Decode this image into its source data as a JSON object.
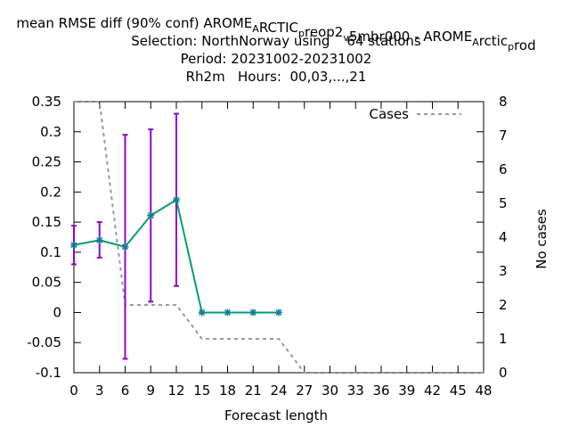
{
  "chart_data": {
    "type": "line",
    "title_lines": [
      "mean RMSE diff (90% conf) AROME_ARCTIC_preop2_v5mbr000 - AROME_Arctic_prod",
      "Selection: NorthNorway using    64 stations",
      "Period: 20231002-20231002",
      "Rh2m   Hours:  00,03,...,21"
    ],
    "title_segments": [
      {
        "t": "mean RMSE diff (90% conf) AROME",
        "sub": false
      },
      {
        "t": "A",
        "sub": true
      },
      {
        "t": "RCTIC",
        "sub": false
      },
      {
        "t": "p",
        "sub": true
      },
      {
        "t": "reop2",
        "sub": false
      },
      {
        "t": "v",
        "sub": true
      },
      {
        "t": "5mbr000 - AROME",
        "sub": false
      },
      {
        "t": "A",
        "sub": true
      },
      {
        "t": "rctic",
        "sub": false
      },
      {
        "t": "p",
        "sub": true
      },
      {
        "t": "rod",
        "sub": false
      }
    ],
    "xlabel": "Forecast length",
    "ylabel_right": "No cases",
    "x_ticks": [
      0,
      3,
      6,
      9,
      12,
      15,
      18,
      21,
      24,
      27,
      30,
      33,
      36,
      39,
      42,
      45,
      48
    ],
    "xlim": [
      0,
      48
    ],
    "ylim": [
      -0.1,
      0.35
    ],
    "y_ticks": [
      -0.1,
      -0.05,
      0,
      0.05,
      0.1,
      0.15,
      0.2,
      0.25,
      0.3,
      0.35
    ],
    "y_tick_labels": [
      "-0.1",
      "-0.05",
      "0",
      "0.05",
      "0.1",
      "0.15",
      "0.2",
      "0.25",
      "0.3",
      "0.35"
    ],
    "y2lim": [
      0,
      8
    ],
    "y2_ticks": [
      0,
      1,
      2,
      3,
      4,
      5,
      6,
      7,
      8
    ],
    "series": [
      {
        "x": [
          0,
          3,
          6,
          9,
          12,
          15,
          18,
          21,
          24
        ],
        "values": [
          0.112,
          0.12,
          0.109,
          0.161,
          0.187,
          0.0,
          0.0,
          0.0,
          0.0
        ],
        "err_low": [
          0.08,
          0.091,
          -0.077,
          0.018,
          0.044,
          0.0,
          0.0,
          0.0,
          0.0
        ],
        "err_high": [
          0.144,
          0.15,
          0.295,
          0.304,
          0.33,
          0.0,
          0.0,
          0.0,
          0.0
        ],
        "color": "#009e73",
        "errorbar_color": "#9400d3",
        "marker_color": "#0f7f94"
      },
      {
        "name": "Cases",
        "axis": "right",
        "style": "dashed",
        "color": "#999999",
        "x": [
          0,
          3,
          6,
          9,
          12,
          15,
          18,
          21,
          24,
          27,
          30,
          33,
          36,
          39,
          42,
          45,
          48
        ],
        "values": [
          8,
          8,
          2,
          2,
          2,
          1,
          1,
          1,
          1,
          0,
          0,
          0,
          0,
          0,
          0,
          0,
          0
        ]
      }
    ],
    "legend": {
      "position": "top-right",
      "label": "Cases"
    }
  }
}
